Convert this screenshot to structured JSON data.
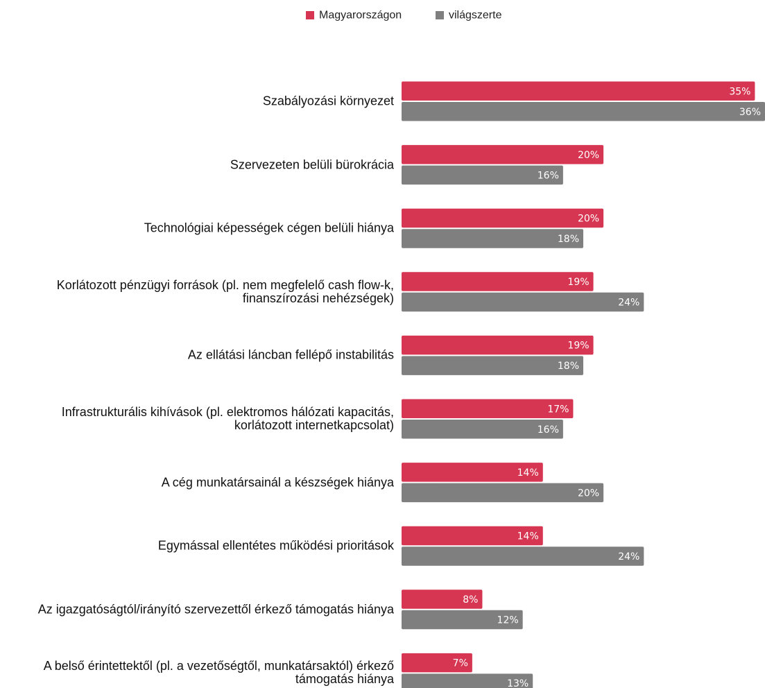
{
  "chart_data": {
    "type": "bar",
    "orientation": "horizontal",
    "categories": [
      "Szabályozási környezet",
      "Szervezeten belüli bürokrácia",
      "Technológiai képességek cégen belüli hiánya",
      "Korlátozott pénzügyi források (pl. nem megfelelő cash flow-k, finanszírozási nehézségek)",
      "Az ellátási láncban fellépő instabilitás",
      "Infrastrukturális kihívások (pl. elektromos hálózati kapacitás, korlátozott internetkapcsolat)",
      "A cég munkatársainál a készségek hiánya",
      "Egymással ellentétes működési prioritások",
      "Az igazgatóságtól/irányító szervezettől érkező támogatás hiánya",
      "A belső érintettektől (pl. a vezetőségtől, munkatársaktól) érkező támogatás hiánya"
    ],
    "series": [
      {
        "name": "Magyarországon",
        "color": "#d63651",
        "values": [
          35,
          20,
          20,
          19,
          19,
          17,
          14,
          14,
          8,
          7
        ],
        "value_labels": [
          "35%",
          "20%",
          "20%",
          "19%",
          "19%",
          "17%",
          "14%",
          "14%",
          "8%",
          "7%"
        ]
      },
      {
        "name": "világszerte",
        "color": "#7f7f7f",
        "values": [
          36,
          16,
          18,
          24,
          18,
          16,
          20,
          24,
          12,
          13
        ],
        "value_labels": [
          "36%",
          "16%",
          "18%",
          "24%",
          "18%",
          "16%",
          "20%",
          "24%",
          "12%",
          "13%"
        ]
      }
    ],
    "xlim": [
      0,
      36
    ],
    "legend": "top"
  }
}
